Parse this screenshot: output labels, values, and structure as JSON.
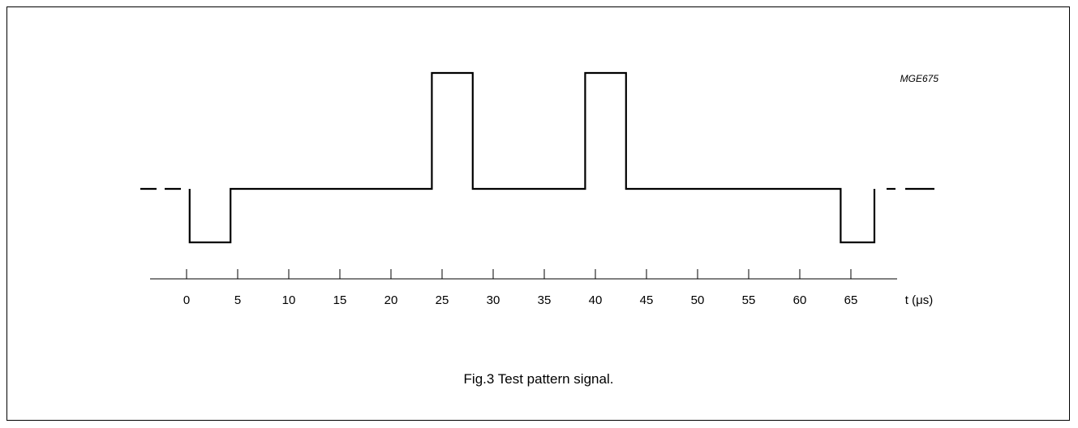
{
  "figure": {
    "code": "MGE675",
    "caption": "Fig.3  Test pattern signal.",
    "axis_unit_label": "t (μs)"
  },
  "chart_data": {
    "type": "line",
    "xlabel": "t (μs)",
    "x_ticks": [
      0,
      5,
      10,
      15,
      20,
      25,
      30,
      35,
      40,
      45,
      50,
      55,
      60,
      65
    ],
    "signal_levels": [
      "low",
      "mid",
      "high"
    ],
    "waveform": [
      {
        "x": 0.3,
        "level": "mid"
      },
      {
        "x": 0.3,
        "level": "low"
      },
      {
        "x": 4.3,
        "level": "low"
      },
      {
        "x": 4.3,
        "level": "mid"
      },
      {
        "x": 24.0,
        "level": "mid"
      },
      {
        "x": 24.0,
        "level": "high"
      },
      {
        "x": 28.0,
        "level": "high"
      },
      {
        "x": 28.0,
        "level": "mid"
      },
      {
        "x": 39.0,
        "level": "mid"
      },
      {
        "x": 39.0,
        "level": "high"
      },
      {
        "x": 43.0,
        "level": "high"
      },
      {
        "x": 43.0,
        "level": "mid"
      },
      {
        "x": 64.0,
        "level": "mid"
      },
      {
        "x": 64.0,
        "level": "low"
      },
      {
        "x": 67.3,
        "level": "low"
      },
      {
        "x": 67.3,
        "level": "mid"
      }
    ]
  }
}
